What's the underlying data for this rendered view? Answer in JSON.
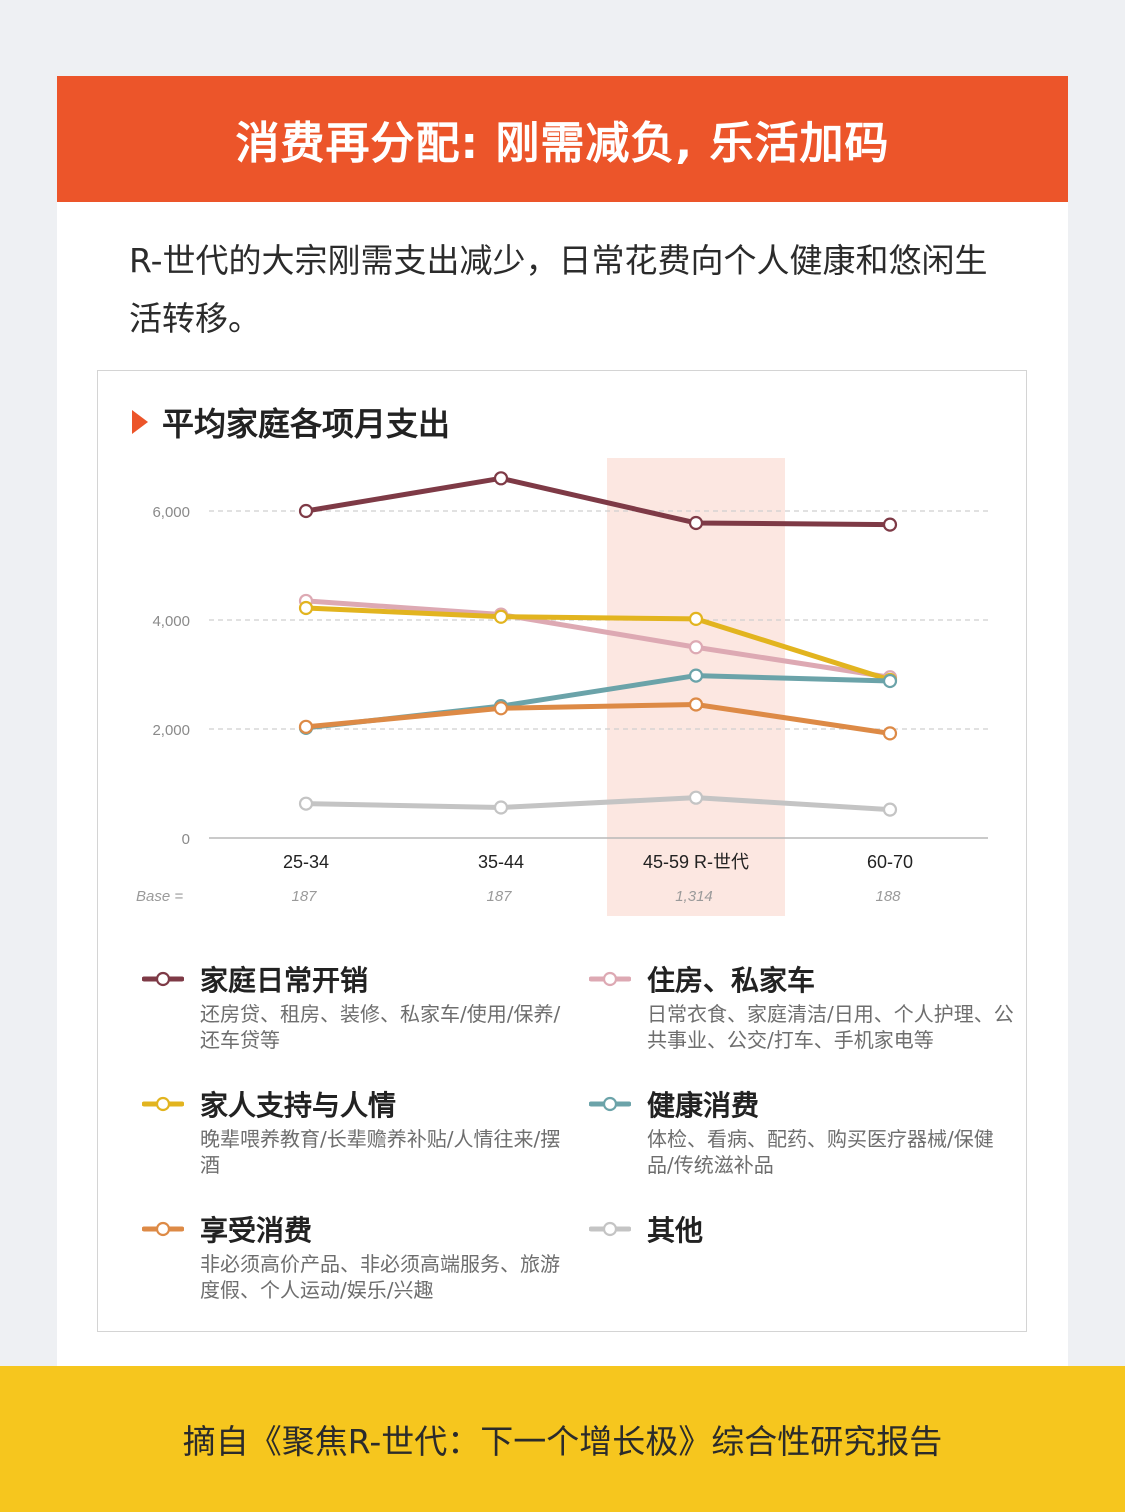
{
  "header": {
    "title": "消费再分配: 刚需减负, 乐活加码"
  },
  "intro": {
    "text": "R-世代的大宗刚需支出减少，日常花费向个人健康和悠闲生活转移。"
  },
  "chart_title": "平均家庭各项月支出",
  "chart_data": {
    "type": "line",
    "title": "平均家庭各项月支出",
    "categories": [
      "25-34",
      "35-44",
      "45-59 R-世代",
      "60-70"
    ],
    "base_label": "Base =",
    "base_values": [
      "187",
      "187",
      "1,314",
      "188"
    ],
    "highlight_category": "45-59 R-世代",
    "ylim": [
      0,
      6000
    ],
    "yticks": [
      0,
      2000,
      4000,
      6000
    ],
    "ytick_labels": [
      "0",
      "2,000",
      "4,000",
      "6,000"
    ],
    "grid": true,
    "series": [
      {
        "name": "家庭日常开销",
        "color": "#7e3a46",
        "values": [
          6000,
          6600,
          5780,
          5750
        ]
      },
      {
        "name": "住房、私家车",
        "color": "#dda9b3",
        "values": [
          4350,
          4100,
          3500,
          2950
        ]
      },
      {
        "name": "家人支持与人情",
        "color": "#e2b41f",
        "values": [
          4220,
          4060,
          4020,
          2900
        ]
      },
      {
        "name": "健康消费",
        "color": "#6ba3a9",
        "values": [
          2020,
          2420,
          2980,
          2880
        ]
      },
      {
        "name": "享受消费",
        "color": "#dd8a46",
        "values": [
          2040,
          2380,
          2450,
          1920
        ]
      },
      {
        "name": "其他",
        "color": "#c4c4c4",
        "values": [
          630,
          560,
          740,
          520
        ]
      }
    ]
  },
  "legend": [
    {
      "name": "家庭日常开销",
      "color": "#7e3a46",
      "desc": "还房贷、租房、装修、私家车/使用/保养/还车贷等"
    },
    {
      "name": "住房、私家车",
      "color": "#dda9b3",
      "desc": "日常衣食、家庭清洁/日用、个人护理、公共事业、公交/打车、手机家电等"
    },
    {
      "name": "家人支持与人情",
      "color": "#e2b41f",
      "desc": "晚辈喂养教育/长辈赡养补贴/人情往来/摆酒"
    },
    {
      "name": "健康消费",
      "color": "#6ba3a9",
      "desc": "体检、看病、配药、购买医疗器械/保健品/传统滋补品"
    },
    {
      "name": "享受消费",
      "color": "#dd8a46",
      "desc": "非必须高价产品、非必须高端服务、旅游度假、个人运动/娱乐/兴趣"
    },
    {
      "name": "其他",
      "color": "#c4c4c4",
      "desc": ""
    }
  ],
  "footer": {
    "text": "摘自《聚焦R-世代：下一个增长极》综合性研究报告"
  }
}
